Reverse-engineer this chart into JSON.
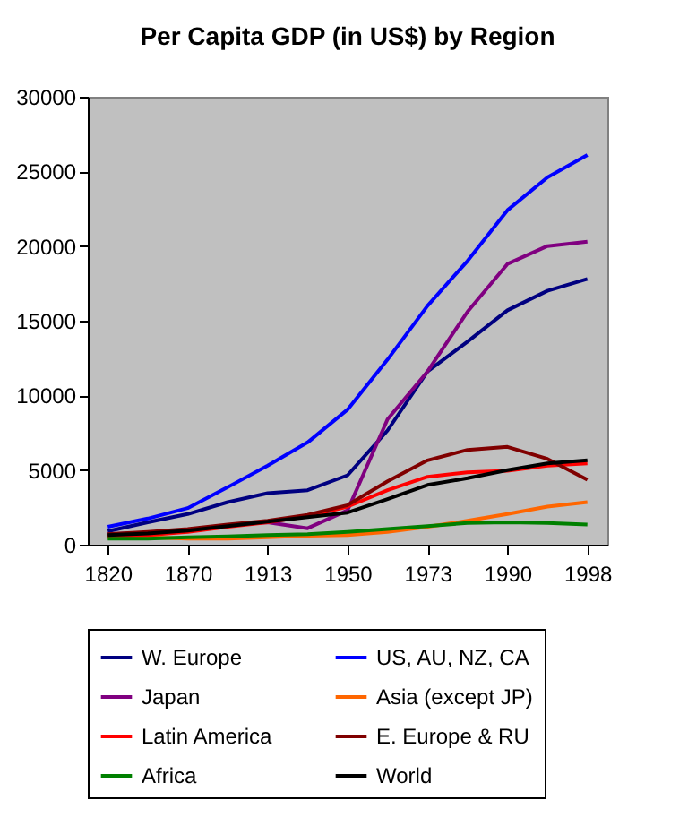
{
  "chart_data": {
    "type": "line",
    "title": "Per Capita GDP (in US$) by Region",
    "categories": [
      "1820",
      null,
      "1870",
      null,
      "1913",
      null,
      "1950",
      null,
      "1973",
      null,
      "1990",
      null,
      "1998"
    ],
    "ylim": [
      0,
      30000
    ],
    "yticks": [
      0,
      5000,
      10000,
      15000,
      20000,
      25000,
      30000
    ],
    "grid": false,
    "legend": "bottom",
    "marker": "none",
    "line_style": "solid",
    "series": [
      {
        "name": "W. Europe",
        "color": "#000080",
        "values": [
          900,
          1500,
          2050,
          2850,
          3450,
          3650,
          4650,
          7650,
          11600,
          13600,
          15700,
          17000,
          17800
        ]
      },
      {
        "name": "US, AU, NZ, CA",
        "color": "#0000ff",
        "values": [
          1200,
          1750,
          2450,
          3850,
          5300,
          6850,
          9050,
          12400,
          16000,
          19000,
          22400,
          24600,
          26100
        ]
      },
      {
        "name": "Japan",
        "color": "#800080",
        "values": [
          700,
          800,
          950,
          1300,
          1500,
          1100,
          2300,
          8400,
          11600,
          15600,
          18800,
          20000,
          20300
        ]
      },
      {
        "name": "Asia (except JP)",
        "color": "#ff6600",
        "values": [
          500,
          500,
          400,
          400,
          500,
          600,
          650,
          850,
          1200,
          1600,
          2050,
          2550,
          2850
        ]
      },
      {
        "name": "Latin America",
        "color": "#ff0000",
        "values": [
          550,
          650,
          850,
          1200,
          1500,
          1900,
          2550,
          3650,
          4550,
          4850,
          4950,
          5300,
          5450
        ]
      },
      {
        "name": "E. Europe & RU",
        "color": "#800000",
        "values": [
          700,
          850,
          1050,
          1350,
          1600,
          2000,
          2650,
          4250,
          5650,
          6350,
          6550,
          5750,
          4350
        ]
      },
      {
        "name": "Africa",
        "color": "#008000",
        "values": [
          400,
          400,
          500,
          550,
          650,
          700,
          850,
          1050,
          1250,
          1450,
          1500,
          1450,
          1350
        ]
      },
      {
        "name": "World",
        "color": "#000000",
        "values": [
          650,
          750,
          950,
          1250,
          1550,
          1850,
          2150,
          3050,
          4000,
          4450,
          5000,
          5450,
          5650
        ]
      }
    ]
  }
}
